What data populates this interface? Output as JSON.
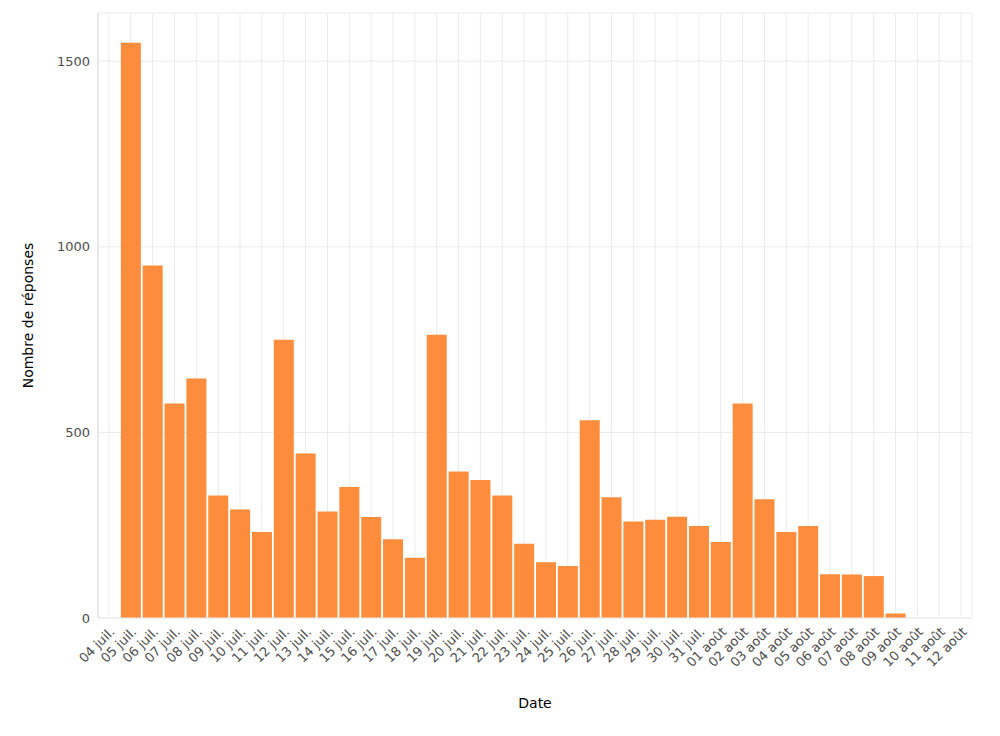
{
  "chart_data": {
    "type": "bar",
    "x_label": "Date",
    "y_label": "Nombre de réponses",
    "categories": [
      "04 juil.",
      "05 juil.",
      "06 juil.",
      "07 juil.",
      "08 juil.",
      "09 juil.",
      "10 juil.",
      "11 juil.",
      "12 juil.",
      "13 juil.",
      "14 juil.",
      "15 juil.",
      "16 juil.",
      "17 juil.",
      "18 juil.",
      "19 juil.",
      "20 juil.",
      "21 juil.",
      "22 juil.",
      "23 juil.",
      "24 juil.",
      "25 juil.",
      "26 juil.",
      "27 juil.",
      "28 juil.",
      "29 juil.",
      "30 juil.",
      "31 juil.",
      "01 août",
      "02 août",
      "03 août",
      "04 août",
      "05 août",
      "06 août",
      "07 août",
      "08 août",
      "09 août",
      "10 août",
      "11 août",
      "12 août"
    ],
    "values": [
      null,
      1550,
      950,
      578,
      645,
      330,
      292,
      232,
      750,
      443,
      287,
      353,
      272,
      212,
      162,
      763,
      395,
      372,
      330,
      200,
      150,
      140,
      533,
      325,
      260,
      265,
      273,
      248,
      205,
      578,
      320,
      232,
      248,
      118,
      117,
      113,
      12,
      null,
      null,
      null
    ],
    "color": "#fd8d3c",
    "ylim": [
      0,
      1630
    ],
    "yticks": [
      0,
      500,
      1000,
      1500
    ],
    "grid": true
  }
}
